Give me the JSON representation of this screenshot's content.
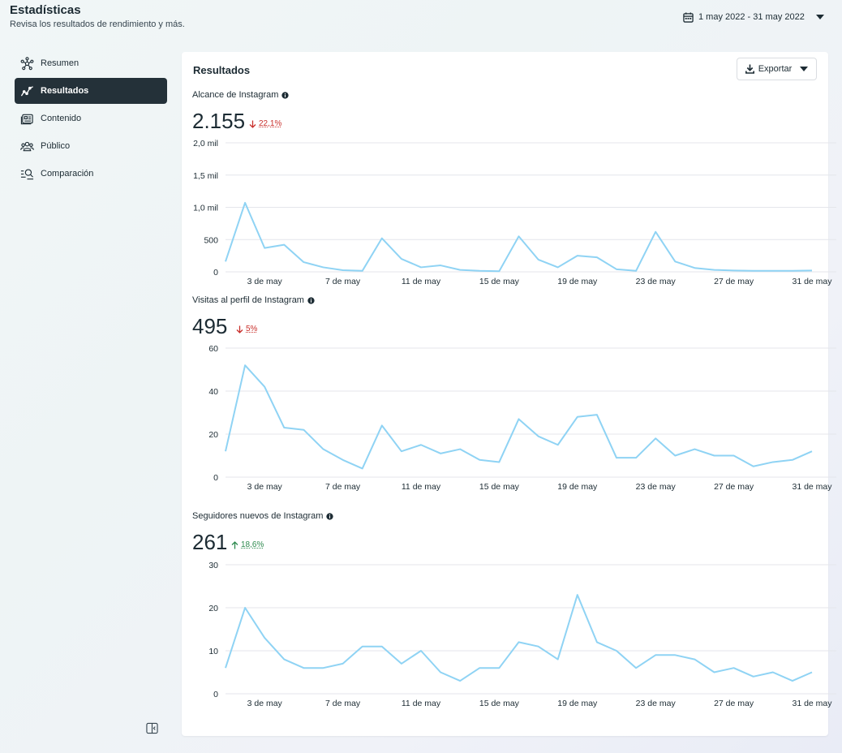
{
  "header": {
    "title": "Estadísticas",
    "subtitle": "Revisa los resultados de rendimiento y más.",
    "date_range": "1 may 2022 - 31 may 2022"
  },
  "sidebar": {
    "items": [
      {
        "label": "Resumen",
        "icon": "network-icon",
        "active": false
      },
      {
        "label": "Resultados",
        "icon": "trend-line-icon",
        "active": true
      },
      {
        "label": "Contenido",
        "icon": "content-icon",
        "active": false
      },
      {
        "label": "Público",
        "icon": "audience-icon",
        "active": false
      },
      {
        "label": "Comparación",
        "icon": "compare-search-icon",
        "active": false
      }
    ]
  },
  "main": {
    "title": "Resultados",
    "export_label": "Exportar"
  },
  "metrics": [
    {
      "label": "Alcance de Instagram",
      "value": "2.155",
      "delta": "22,1%",
      "direction": "down"
    },
    {
      "label": "Visitas al perfil de Instagram",
      "value": "495",
      "delta": "5%",
      "direction": "down"
    },
    {
      "label": "Seguidores nuevos de Instagram",
      "value": "261",
      "delta": "18,6%",
      "direction": "up"
    }
  ],
  "colors": {
    "line": "#8fd3f4",
    "grid": "#e4e6eb",
    "sidebar_active": "#243139",
    "delta_down": "#c9302c",
    "delta_up": "#2d8a4e"
  },
  "chart_data": [
    {
      "type": "line",
      "x": [
        1,
        2,
        3,
        4,
        5,
        6,
        7,
        8,
        9,
        10,
        11,
        12,
        13,
        14,
        15,
        16,
        17,
        18,
        19,
        20,
        21,
        22,
        23,
        24,
        25,
        26,
        27,
        28,
        29,
        30,
        31
      ],
      "x_tick_labels": [
        "3 de may",
        "7 de may",
        "11 de may",
        "15 de may",
        "19 de may",
        "23 de may",
        "27 de may",
        "31 de may"
      ],
      "x_tick_positions": [
        3,
        7,
        11,
        15,
        19,
        23,
        27,
        31
      ],
      "ylim": [
        0,
        2000
      ],
      "y_ticks": [
        0,
        500,
        1000,
        1500,
        2000
      ],
      "y_tick_labels": [
        "0",
        "500",
        "1,0 mil",
        "1,5 mil",
        "2,0 mil"
      ],
      "series": [
        {
          "values": [
            160,
            1070,
            370,
            420,
            150,
            70,
            25,
            15,
            520,
            200,
            70,
            100,
            30,
            15,
            10,
            550,
            190,
            70,
            250,
            225,
            40,
            15,
            620,
            160,
            60,
            30,
            20,
            15,
            15,
            15,
            20
          ]
        }
      ],
      "grid": true
    },
    {
      "type": "line",
      "x": [
        1,
        2,
        3,
        4,
        5,
        6,
        7,
        8,
        9,
        10,
        11,
        12,
        13,
        14,
        15,
        16,
        17,
        18,
        19,
        20,
        21,
        22,
        23,
        24,
        25,
        26,
        27,
        28,
        29,
        30,
        31
      ],
      "x_tick_labels": [
        "3 de may",
        "7 de may",
        "11 de may",
        "15 de may",
        "19 de may",
        "23 de may",
        "27 de may",
        "31 de may"
      ],
      "x_tick_positions": [
        3,
        7,
        11,
        15,
        19,
        23,
        27,
        31
      ],
      "ylim": [
        0,
        60
      ],
      "y_ticks": [
        0,
        20,
        40,
        60
      ],
      "y_tick_labels": [
        "0",
        "20",
        "40",
        "60"
      ],
      "series": [
        {
          "values": [
            12,
            52,
            42,
            23,
            22,
            13,
            8,
            4,
            24,
            12,
            15,
            11,
            13,
            8,
            7,
            27,
            19,
            15,
            28,
            29,
            9,
            9,
            18,
            10,
            13,
            10,
            10,
            5,
            7,
            8,
            12
          ]
        }
      ],
      "grid": true
    },
    {
      "type": "line",
      "x": [
        1,
        2,
        3,
        4,
        5,
        6,
        7,
        8,
        9,
        10,
        11,
        12,
        13,
        14,
        15,
        16,
        17,
        18,
        19,
        20,
        21,
        22,
        23,
        24,
        25,
        26,
        27,
        28,
        29,
        30,
        31
      ],
      "x_tick_labels": [
        "3 de may",
        "7 de may",
        "11 de may",
        "15 de may",
        "19 de may",
        "23 de may",
        "27 de may",
        "31 de may"
      ],
      "x_tick_positions": [
        3,
        7,
        11,
        15,
        19,
        23,
        27,
        31
      ],
      "ylim": [
        0,
        30
      ],
      "y_ticks": [
        0,
        10,
        20,
        30
      ],
      "y_tick_labels": [
        "0",
        "10",
        "20",
        "30"
      ],
      "series": [
        {
          "values": [
            6,
            20,
            13,
            8,
            6,
            6,
            7,
            11,
            11,
            7,
            10,
            5,
            3,
            6,
            6,
            12,
            11,
            8,
            23,
            12,
            10,
            6,
            9,
            9,
            8,
            5,
            6,
            4,
            5,
            3,
            5
          ]
        }
      ],
      "grid": true
    }
  ]
}
